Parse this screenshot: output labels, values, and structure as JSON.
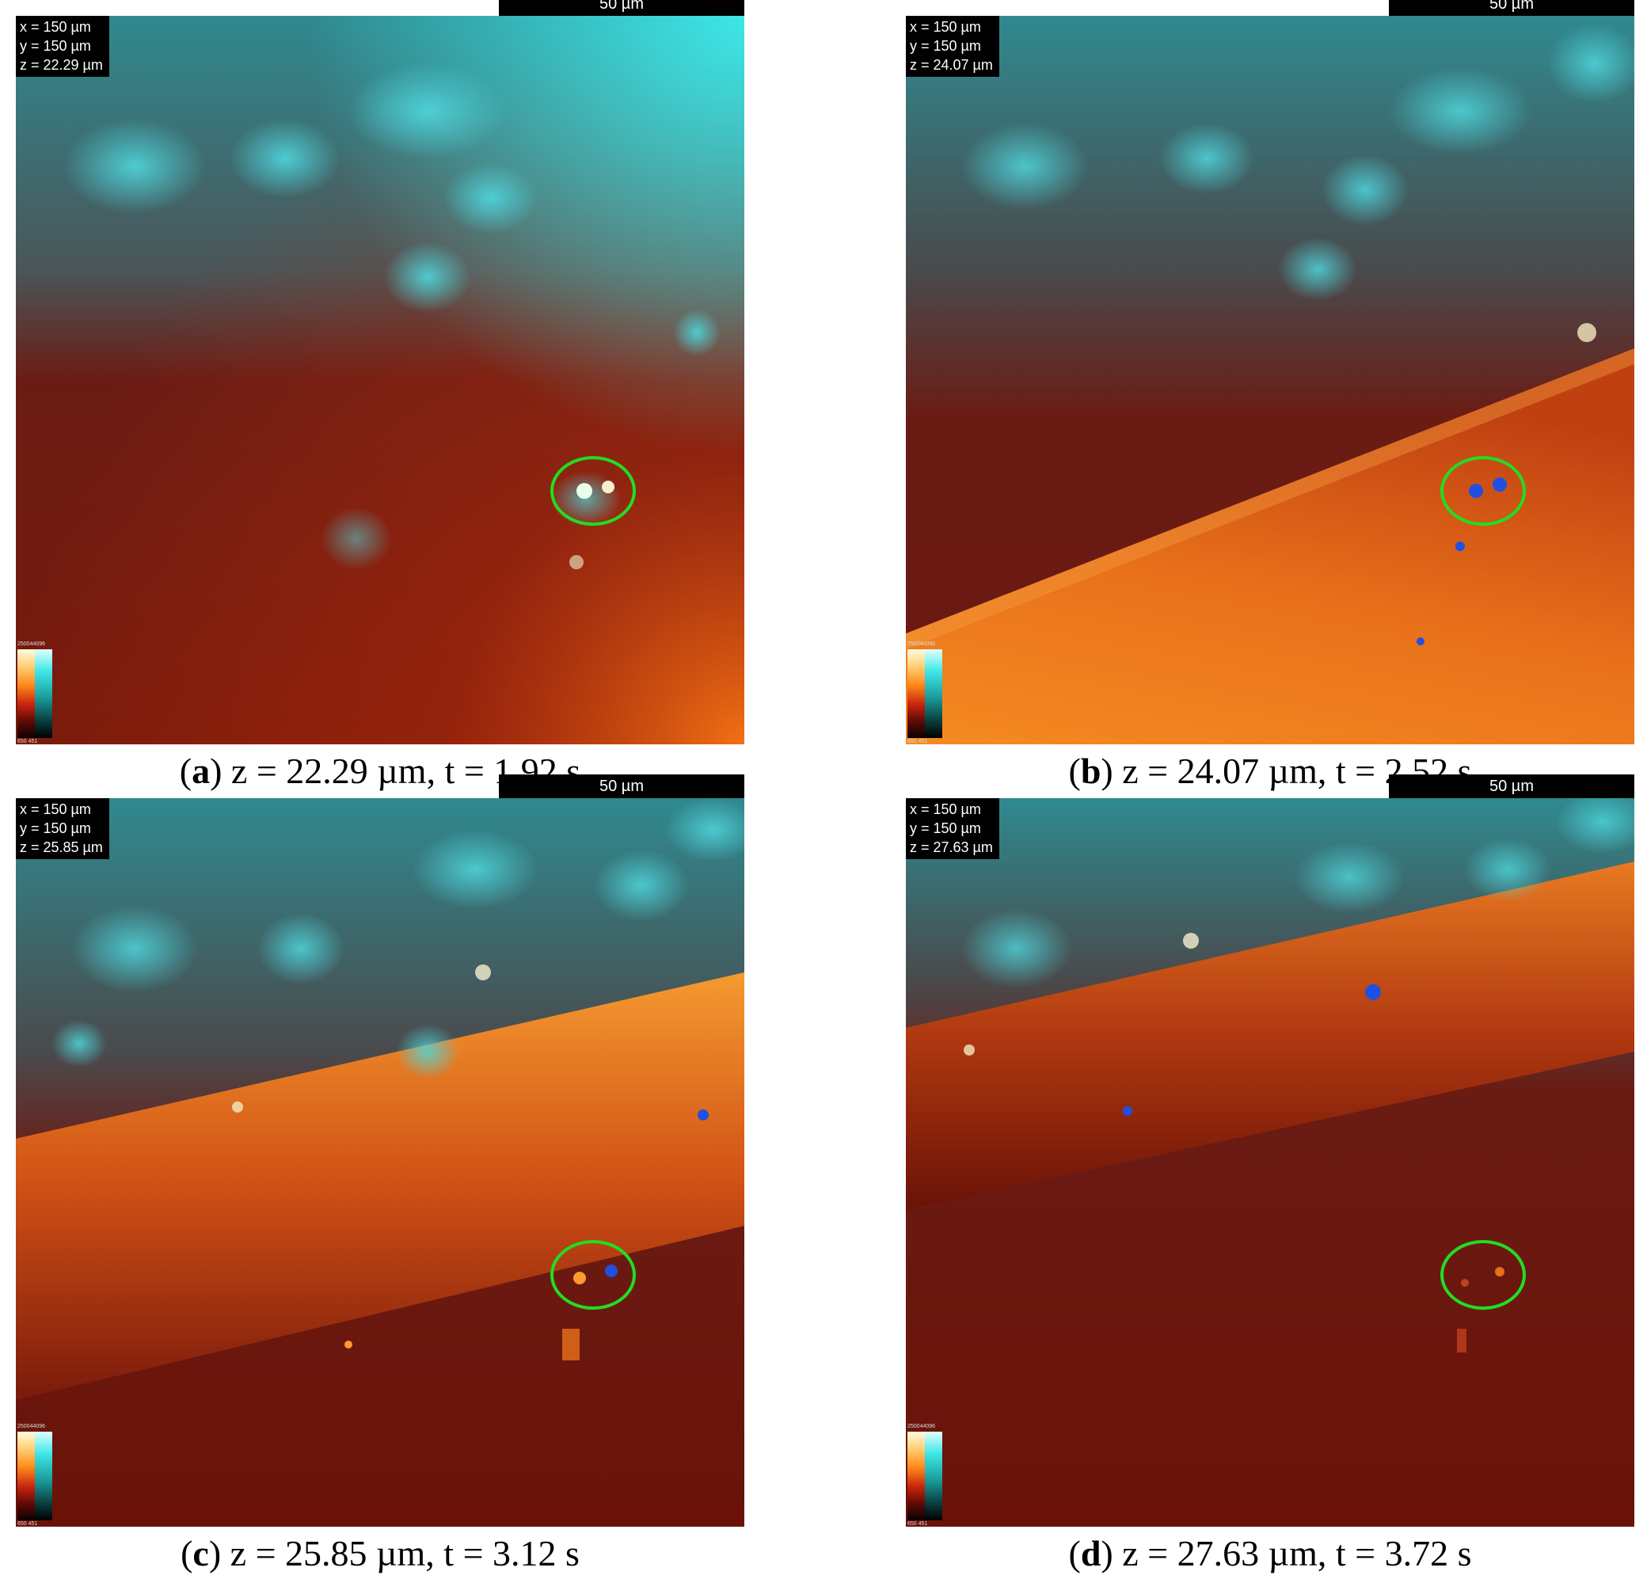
{
  "panels": [
    {
      "letter": "a",
      "info": {
        "x": "x = 150 µm",
        "y": "y = 150 µm",
        "z": "z = 22.29 µm"
      },
      "colorbar": {
        "top": "250044096",
        "bottom": "650 451"
      },
      "scalebar": "50 µm",
      "caption_text": ") z = 22.29 µm, t = 1.92 s"
    },
    {
      "letter": "b",
      "info": {
        "x": "x = 150 µm",
        "y": "y = 150 µm",
        "z": "z = 24.07 µm"
      },
      "colorbar": {
        "top": "250044096",
        "bottom": "650 451"
      },
      "scalebar": "50 µm",
      "caption_text": ") z = 24.07 µm, t = 2.52 s"
    },
    {
      "letter": "c",
      "info": {
        "x": "x = 150 µm",
        "y": "y = 150 µm",
        "z": "z = 25.85 µm"
      },
      "colorbar": {
        "top": "250044096",
        "bottom": "650 451"
      },
      "scalebar": "50 µm",
      "caption_text": ") z = 25.85 µm, t = 3.12 s"
    },
    {
      "letter": "d",
      "info": {
        "x": "x = 150 µm",
        "y": "y = 150 µm",
        "z": "z = 27.63 µm"
      },
      "colorbar": {
        "top": "250044096",
        "bottom": "650 451"
      },
      "scalebar": "50 µm",
      "caption_text": ") z = 27.63 µm, t = 3.72 s"
    }
  ],
  "colors": {
    "cyan_region": "#2aa6b0",
    "dark_red": "#6e1408",
    "orange_band": "#f07a1a",
    "highlight_ring": "#22dd22"
  }
}
